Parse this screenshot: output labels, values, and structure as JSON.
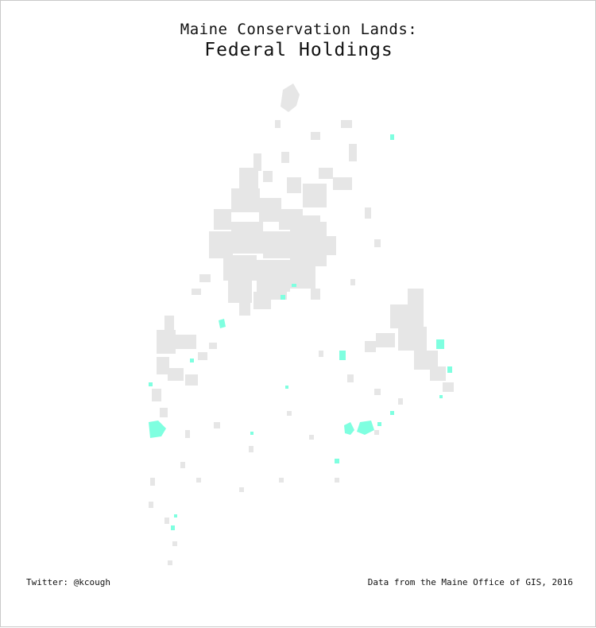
{
  "title": {
    "line1": "Maine Conservation Lands:",
    "line2": "Federal Holdings"
  },
  "footer": {
    "credit": "Twitter: @kcough",
    "source": "Data from the Maine Office of GIS, 2016"
  },
  "colors": {
    "other_lands": "#e6e6e6",
    "federal_lands": "#7fffe0",
    "background": "#ffffff"
  }
}
